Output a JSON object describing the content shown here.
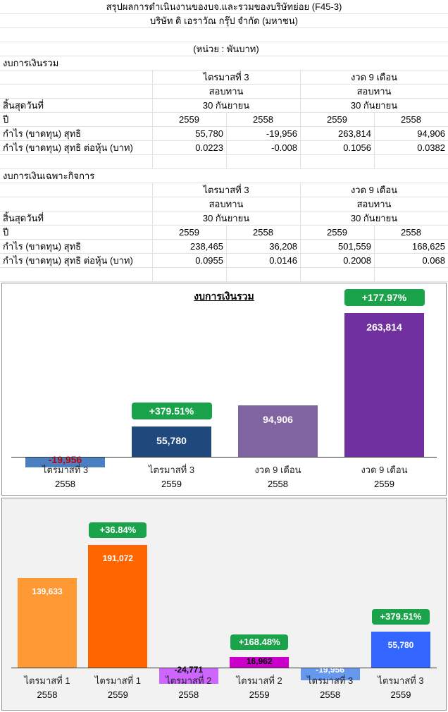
{
  "header": {
    "title": "สรุปผลการดำเนินงานของบจ.และรวมของบริษัทย่อย (F45-3)",
    "company": "บริษัท ดิ เอราวัณ กรุ๊ป จำกัด (มหาชน)",
    "unit": "(หน่วย : พันบาท)"
  },
  "consolidated": {
    "section_title": "งบการเงินรวม",
    "period_q3": "ไตรมาสที่ 3",
    "period_9m": "งวด 9 เดือน",
    "audit_q3": "สอบทาน",
    "audit_9m": "สอบทาน",
    "end_label": "สิ้นสุดวันที่",
    "end_q3": "30 กันยายน",
    "end_9m": "30 กันยายน",
    "year_label": "ปี",
    "years": [
      "2559",
      "2558",
      "2559",
      "2558"
    ],
    "net_label": "กำไร (ขาดทุน) สุทธิ",
    "net": [
      "55,780",
      "-19,956",
      "263,814",
      "94,906"
    ],
    "eps_label": "กำไร (ขาดทุน) สุทธิ ต่อหุ้น (บาท)",
    "eps": [
      "0.0223",
      "-0.008",
      "0.1056",
      "0.0382"
    ]
  },
  "separate": {
    "section_title": "งบการเงินเฉพาะกิจการ",
    "period_q3": "ไตรมาสที่ 3",
    "period_9m": "งวด 9 เดือน",
    "audit_q3": "สอบทาน",
    "audit_9m": "สอบทาน",
    "end_label": "สิ้นสุดวันที่",
    "end_q3": "30 กันยายน",
    "end_9m": "30 กันยายน",
    "year_label": "ปี",
    "years": [
      "2559",
      "2558",
      "2559",
      "2558"
    ],
    "net_label": "กำไร (ขาดทุน) สุทธิ",
    "net": [
      "238,465",
      "36,208",
      "501,559",
      "168,625"
    ],
    "eps_label": "กำไร (ขาดทุน) สุทธิ ต่อหุ้น (บาท)",
    "eps": [
      "0.0955",
      "0.0146",
      "0.2008",
      "0.068"
    ]
  },
  "chart_data": [
    {
      "type": "bar",
      "title": "งบการเงินรวม",
      "categories": [
        "ไตรมาสที่ 3",
        "ไตรมาสที่ 3",
        "งวด 9 เดือน",
        "งวด 9 เดือน"
      ],
      "years": [
        "2558",
        "2559",
        "2558",
        "2559"
      ],
      "values": [
        -19956,
        55780,
        94906,
        263814
      ],
      "value_labels": [
        "-19,956",
        "55,780",
        "94,906",
        "263,814"
      ],
      "colors": [
        "#4a7fc1",
        "#1f497d",
        "#8064a2",
        "#7030a0"
      ],
      "label_colors": [
        "#c00000",
        "#ffffff",
        "#ffffff",
        "#ffffff"
      ],
      "growth_badges": [
        null,
        "+379.51%",
        null,
        "+177.97%"
      ],
      "badge_color": "#1aa34a",
      "ylim": [
        -19956,
        263814
      ]
    },
    {
      "type": "bar",
      "title": "",
      "categories": [
        "ไตรมาสที่ 1",
        "ไตรมาสที่ 1",
        "ไตรมาสที่ 2",
        "ไตรมาสที่ 2",
        "ไตรมาสที่ 3",
        "ไตรมาสที่ 3"
      ],
      "years": [
        "2558",
        "2559",
        "2558",
        "2559",
        "2558",
        "2559"
      ],
      "values": [
        139633,
        191072,
        -24771,
        16962,
        -19956,
        55780
      ],
      "value_labels": [
        "139,633",
        "191,072",
        "-24,771",
        "16,962",
        "-19,956",
        "55,780"
      ],
      "colors": [
        "#ff9933",
        "#ff6600",
        "#cc66ff",
        "#cc00cc",
        "#6699ee",
        "#3366ff"
      ],
      "label_colors": [
        "#ffffff",
        "#ffffff",
        "#000000",
        "#000000",
        "#ffffff",
        "#ffffff"
      ],
      "growth_badges": [
        null,
        "+36.84%",
        null,
        "+168.48%",
        null,
        "+379.51%"
      ],
      "badge_color": "#1aa34a",
      "ylim": [
        -24771,
        191072
      ]
    }
  ]
}
